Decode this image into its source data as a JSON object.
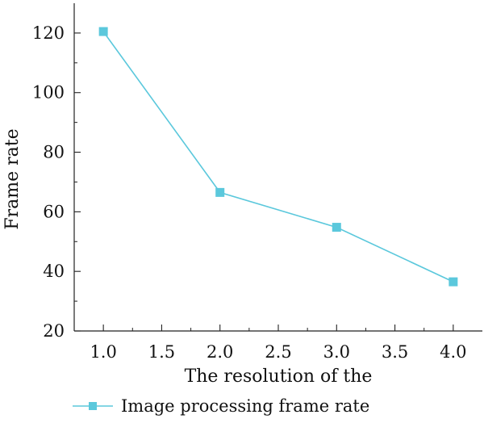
{
  "chart_data": {
    "type": "line",
    "title": "",
    "xlabel": "The resolution of the",
    "ylabel": "Frame rate",
    "xlim": [
      0.75,
      4.25
    ],
    "ylim": [
      20,
      130
    ],
    "xticks": [
      "1.0",
      "1.5",
      "2.0",
      "2.5",
      "3.0",
      "3.5",
      "4.0"
    ],
    "yticks": [
      "20",
      "40",
      "60",
      "80",
      "100",
      "120"
    ],
    "grid": false,
    "legend_position": "bottom",
    "series": [
      {
        "name": "Image processing frame rate",
        "color": "#5bc8dc",
        "marker": "square",
        "x": [
          1.0,
          2.0,
          3.0,
          4.0
        ],
        "y": [
          120.5,
          66.5,
          54.8,
          36.5
        ]
      }
    ]
  }
}
